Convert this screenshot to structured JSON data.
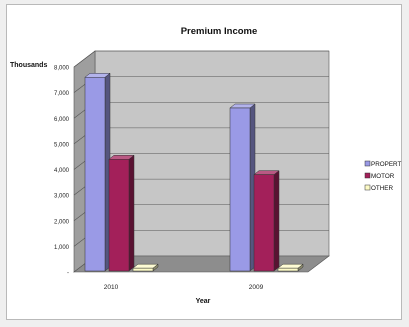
{
  "chart_data": {
    "type": "bar",
    "title": "Premium Income",
    "xlabel": "Year",
    "ylabel": "Thousands",
    "categories": [
      "2010",
      "2009"
    ],
    "series": [
      {
        "name": "PROPERTY",
        "legend_label": "PROPERT",
        "color": "#9a9ae6",
        "values": [
          7600,
          6400
        ]
      },
      {
        "name": "MOTOR",
        "legend_label": "MOTOR",
        "color": "#a3205a",
        "values": [
          4400,
          3800
        ]
      },
      {
        "name": "OTHER",
        "legend_label": "OTHER",
        "color": "#fdfbc6",
        "values": [
          150,
          150
        ]
      }
    ],
    "ylim": [
      0,
      8000
    ],
    "yticks": [
      "-",
      "1,000",
      "2,000",
      "3,000",
      "4,000",
      "5,000",
      "6,000",
      "7,000",
      "8,000"
    ],
    "grid": true,
    "legend_position": "right",
    "style": "3d-clustered-column"
  }
}
